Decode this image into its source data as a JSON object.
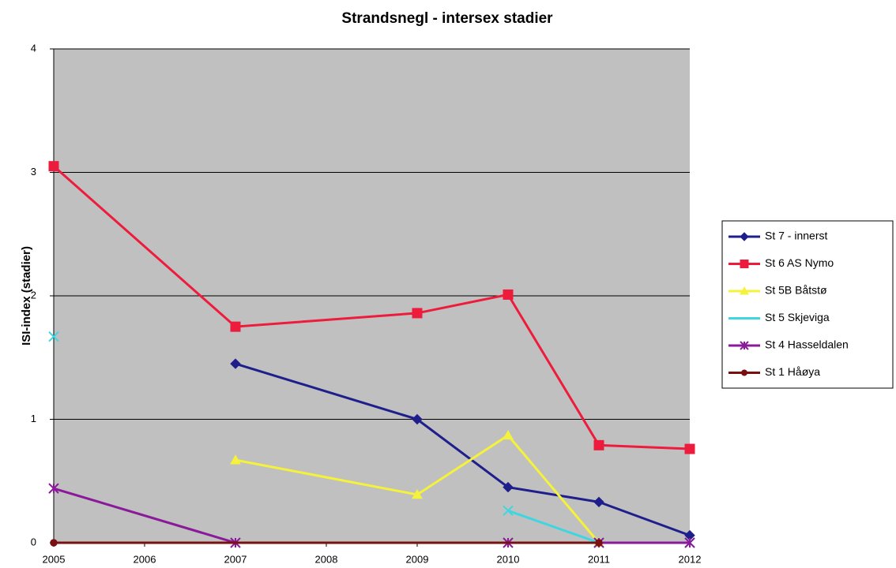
{
  "chart_data": {
    "type": "line",
    "title": "Strandsnegl - intersex stadier",
    "y_label": "ISI-index (stadier)",
    "categories": [
      "2005",
      "2006",
      "2007",
      "2008",
      "2009",
      "2010",
      "2011",
      "2012"
    ],
    "ylim": [
      0,
      4
    ],
    "yticks": [
      0,
      1,
      2,
      3,
      4
    ],
    "grid": true,
    "plot_background": "#c0c0c0",
    "legend": "right",
    "series": [
      {
        "name": "St 7 - innerst",
        "color": "#1f1f8c",
        "marker": "diamond",
        "connect_gaps": true,
        "values": [
          null,
          null,
          1.45,
          null,
          1.0,
          0.45,
          0.33,
          0.06
        ]
      },
      {
        "name": "St 6 AS Nymo",
        "color": "#ee1c3c",
        "marker": "square",
        "connect_gaps": true,
        "values": [
          3.05,
          null,
          1.75,
          null,
          1.86,
          2.01,
          0.79,
          0.76
        ]
      },
      {
        "name": "St 5B Båtstø",
        "color": "#f4f23a",
        "marker": "triangle",
        "connect_gaps": true,
        "values": [
          null,
          null,
          0.67,
          null,
          0.39,
          0.87,
          0,
          null
        ]
      },
      {
        "name": "St 5 Skjeviga",
        "color": "#3fd6e0",
        "marker": "x",
        "connect_gaps": false,
        "values": [
          1.67,
          null,
          null,
          null,
          null,
          0.26,
          0,
          0
        ]
      },
      {
        "name": "St 4 Hasseldalen",
        "color": "#8a1a9a",
        "marker": "star",
        "connect_gaps": true,
        "values": [
          0.44,
          null,
          0,
          null,
          null,
          0,
          0,
          0
        ]
      },
      {
        "name": "St 1 Håøya",
        "color": "#7a1010",
        "marker": "circle",
        "connect_gaps": true,
        "values": [
          0,
          null,
          null,
          null,
          null,
          null,
          0,
          null
        ]
      }
    ]
  }
}
